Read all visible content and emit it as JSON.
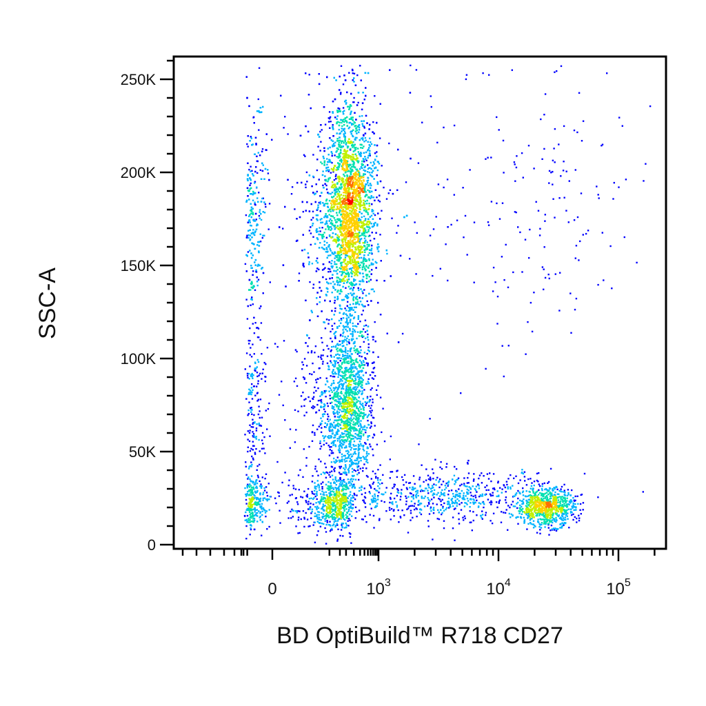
{
  "chart_data": {
    "type": "scatter",
    "subtype": "flow-cytometry-density-dot-plot",
    "xlabel": "BD OptiBuild™ R718 CD27",
    "ylabel": "SSC-A",
    "x_scale": "biexponential",
    "y_scale": "linear",
    "xlim": [
      -300,
      250000
    ],
    "ylim": [
      -3000,
      262144
    ],
    "x_ticks": [
      {
        "value": 0,
        "base": "0",
        "exp": ""
      },
      {
        "value": 1000,
        "base": "10",
        "exp": "3"
      },
      {
        "value": 10000,
        "base": "10",
        "exp": "4"
      },
      {
        "value": 100000,
        "base": "10",
        "exp": "5"
      }
    ],
    "y_ticks": [
      {
        "value": 0,
        "label": "0"
      },
      {
        "value": 50000,
        "label": "50K"
      },
      {
        "value": 100000,
        "label": "100K"
      },
      {
        "value": 150000,
        "label": "150K"
      },
      {
        "value": 200000,
        "label": "200K"
      },
      {
        "value": 250000,
        "label": "250K"
      }
    ],
    "grid": false,
    "density_colors": [
      "#0000ff",
      "#00b4ff",
      "#00e0b0",
      "#c0f000",
      "#ffd000",
      "#ff7000",
      "#ff0000"
    ],
    "populations": [
      {
        "center": [
          120,
          180000
        ],
        "spread_decades": 0.42,
        "spread_y": 28000,
        "weight": 0.52
      },
      {
        "center": [
          100,
          75000
        ],
        "spread_decades": 0.4,
        "spread_y": 22000,
        "weight": 0.2
      },
      {
        "center": [
          20,
          22000
        ],
        "spread_decades": 0.35,
        "spread_y": 7000,
        "weight": 0.1
      },
      {
        "center": [
          25000,
          20000
        ],
        "spread_decades": 0.12,
        "spread_y": 5000,
        "weight": 0.09
      },
      {
        "center": [
          4000,
          26000
        ],
        "spread_decades": 0.45,
        "spread_y": 7000,
        "weight": 0.07
      },
      {
        "center": [
          20000,
          180000
        ],
        "spread_decades": 0.5,
        "spread_y": 40000,
        "weight": 0.02
      }
    ]
  }
}
